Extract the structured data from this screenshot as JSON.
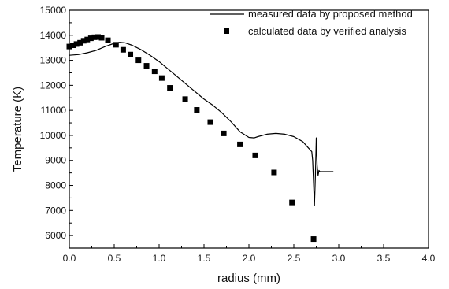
{
  "chart_data": {
    "type": "line",
    "xlabel": "radius (mm)",
    "ylabel": "Temperature (K)",
    "xlim": [
      0.0,
      4.0
    ],
    "ylim": [
      5500,
      15000
    ],
    "xticks": [
      "0.0",
      "0.5",
      "1.0",
      "1.5",
      "2.0",
      "2.5",
      "3.0",
      "3.5",
      "4.0"
    ],
    "yticks": [
      "6000",
      "7000",
      "8000",
      "9000",
      "10000",
      "11000",
      "12000",
      "13000",
      "14000",
      "15000"
    ],
    "xtick_values": [
      0.0,
      0.5,
      1.0,
      1.5,
      2.0,
      2.5,
      3.0,
      3.5,
      4.0
    ],
    "ytick_values": [
      6000,
      7000,
      8000,
      9000,
      10000,
      11000,
      12000,
      13000,
      14000,
      15000
    ],
    "legend_position": "top-right",
    "series": [
      {
        "name": "measured data by proposed method",
        "style": "line",
        "color": "#000000",
        "x": [
          0.0,
          0.1,
          0.2,
          0.3,
          0.4,
          0.5,
          0.56,
          0.62,
          0.7,
          0.8,
          0.9,
          1.0,
          1.1,
          1.2,
          1.3,
          1.4,
          1.5,
          1.6,
          1.7,
          1.8,
          1.9,
          2.0,
          2.06,
          2.1,
          2.2,
          2.3,
          2.4,
          2.5,
          2.6,
          2.65,
          2.7,
          2.71,
          2.73,
          2.74,
          2.75,
          2.76,
          2.77,
          2.78,
          2.79,
          2.8,
          2.85,
          2.9,
          2.94
        ],
        "y": [
          13200,
          13230,
          13300,
          13400,
          13550,
          13680,
          13720,
          13700,
          13600,
          13420,
          13200,
          12950,
          12650,
          12350,
          12050,
          11750,
          11450,
          11200,
          10900,
          10550,
          10150,
          9920,
          9900,
          9950,
          10050,
          10080,
          10050,
          9950,
          9750,
          9550,
          9350,
          9000,
          7200,
          8400,
          9900,
          8800,
          8400,
          8600,
          8550,
          8550,
          8550,
          8550,
          8550
        ]
      },
      {
        "name": "calculated data by verified analysis",
        "style": "square-markers",
        "color": "#000000",
        "x": [
          0.0,
          0.04,
          0.08,
          0.12,
          0.16,
          0.2,
          0.24,
          0.28,
          0.32,
          0.36,
          0.43,
          0.52,
          0.6,
          0.68,
          0.77,
          0.86,
          0.95,
          1.03,
          1.12,
          1.29,
          1.42,
          1.57,
          1.72,
          1.9,
          2.07,
          2.28,
          2.48,
          2.72
        ],
        "y": [
          13550,
          13600,
          13650,
          13700,
          13780,
          13830,
          13880,
          13920,
          13930,
          13900,
          13800,
          13620,
          13420,
          13230,
          13000,
          12780,
          12560,
          12290,
          11900,
          11450,
          11020,
          10530,
          10080,
          9640,
          9200,
          8520,
          7320,
          5860
        ]
      }
    ]
  }
}
